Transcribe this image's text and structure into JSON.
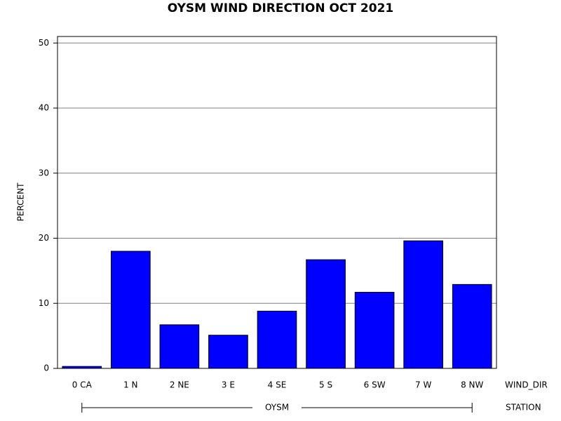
{
  "chart_data": {
    "type": "bar",
    "title": "OYSM WIND DIRECTION OCT 2021",
    "y_label": "PERCENT",
    "x_label": "WIND_DIR",
    "group_label": "STATION",
    "group": "OYSM",
    "categories": [
      "0 CA",
      "1 N",
      "2 NE",
      "3 E",
      "4 SE",
      "5 S",
      "6 SW",
      "7 W",
      "8 NW"
    ],
    "values": [
      0.3,
      18.0,
      6.7,
      5.1,
      8.8,
      16.7,
      11.7,
      19.6,
      12.9
    ],
    "color": "#0000ff",
    "ylim": [
      0,
      51
    ],
    "yticks": [
      0,
      10,
      20,
      30,
      40,
      50
    ],
    "grid": true
  }
}
